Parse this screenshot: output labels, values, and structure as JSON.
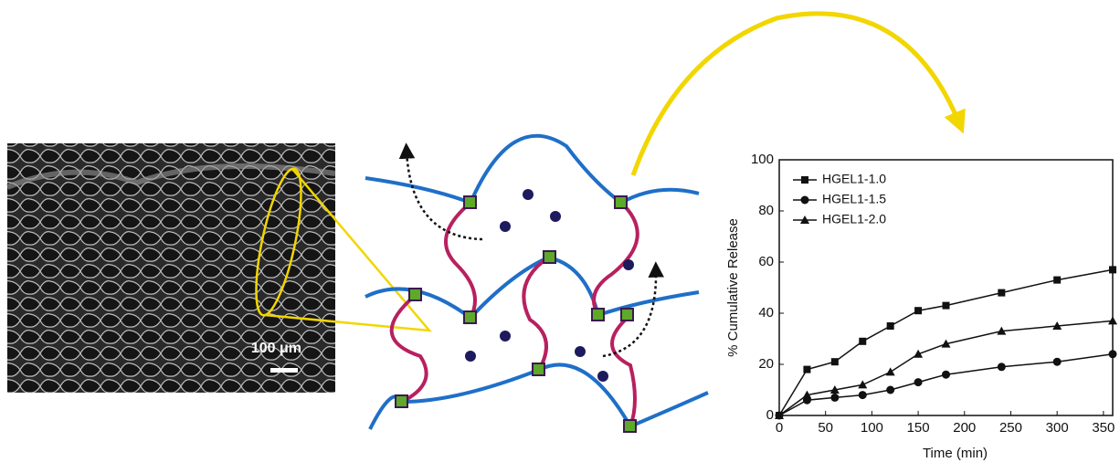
{
  "scale_bar_label": "100 μm",
  "chart_data": {
    "type": "line",
    "x_label": "Time (min)",
    "y_label": "% Cumulative Release",
    "x": [
      0,
      30,
      60,
      90,
      120,
      150,
      180,
      240,
      300,
      360
    ],
    "series": [
      {
        "name": "HGEL1-1.0",
        "color": "#111111",
        "marker": "square",
        "values": [
          0,
          18,
          21,
          29,
          35,
          41,
          43,
          48,
          53,
          57
        ]
      },
      {
        "name": "HGEL1-1.5",
        "color": "#111111",
        "marker": "circle",
        "values": [
          0,
          6,
          7,
          8,
          10,
          13,
          16,
          19,
          21,
          24
        ]
      },
      {
        "name": "HGEL1-2.0",
        "color": "#111111",
        "marker": "triangle",
        "values": [
          0,
          8,
          10,
          12,
          17,
          24,
          28,
          33,
          35,
          37
        ]
      }
    ],
    "xlim": [
      0,
      360
    ],
    "xticks": [
      0,
      50,
      100,
      150,
      200,
      250,
      300,
      350
    ],
    "ylim": [
      0,
      100
    ],
    "yticks": [
      0,
      20,
      40,
      60,
      80,
      100
    ],
    "legend": "upper left"
  }
}
